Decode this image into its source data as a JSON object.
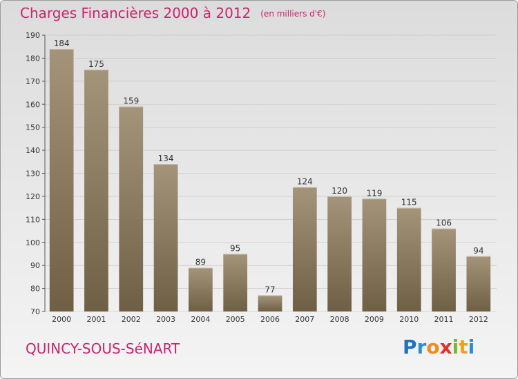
{
  "title": "Charges Financières 2000 à 2012",
  "unit_note": "(en milliers d'€)",
  "place_name": "QUINCY-SOUS-SéNART",
  "brand": {
    "letters": [
      "P",
      "r",
      "o",
      "x",
      "i",
      "t",
      "i"
    ],
    "colors": [
      "#1e73be",
      "#2e8bd6",
      "#f28a1c",
      "#e2312b",
      "#7cb82f",
      "#f0a21a",
      "#2e8bd6"
    ]
  },
  "colors": {
    "bar_top": "#a3947a",
    "bar_bottom": "#6e5f45",
    "grid": "#c0c0c0",
    "axis_text": "#333333",
    "title": "#c8246f"
  },
  "chart_data": {
    "type": "bar",
    "title": "Charges Financières 2000 à 2012",
    "subtitle": "(en milliers d'€)",
    "categories": [
      "2000",
      "2001",
      "2002",
      "2003",
      "2004",
      "2005",
      "2006",
      "2007",
      "2008",
      "2009",
      "2010",
      "2011",
      "2012"
    ],
    "values": [
      184,
      175,
      159,
      134,
      89,
      95,
      77,
      124,
      120,
      119,
      115,
      106,
      94
    ],
    "ylim": [
      70,
      190
    ],
    "yticks": [
      70,
      80,
      90,
      100,
      110,
      120,
      130,
      140,
      150,
      160,
      170,
      180,
      190
    ],
    "grid": true,
    "data_labels": true
  }
}
